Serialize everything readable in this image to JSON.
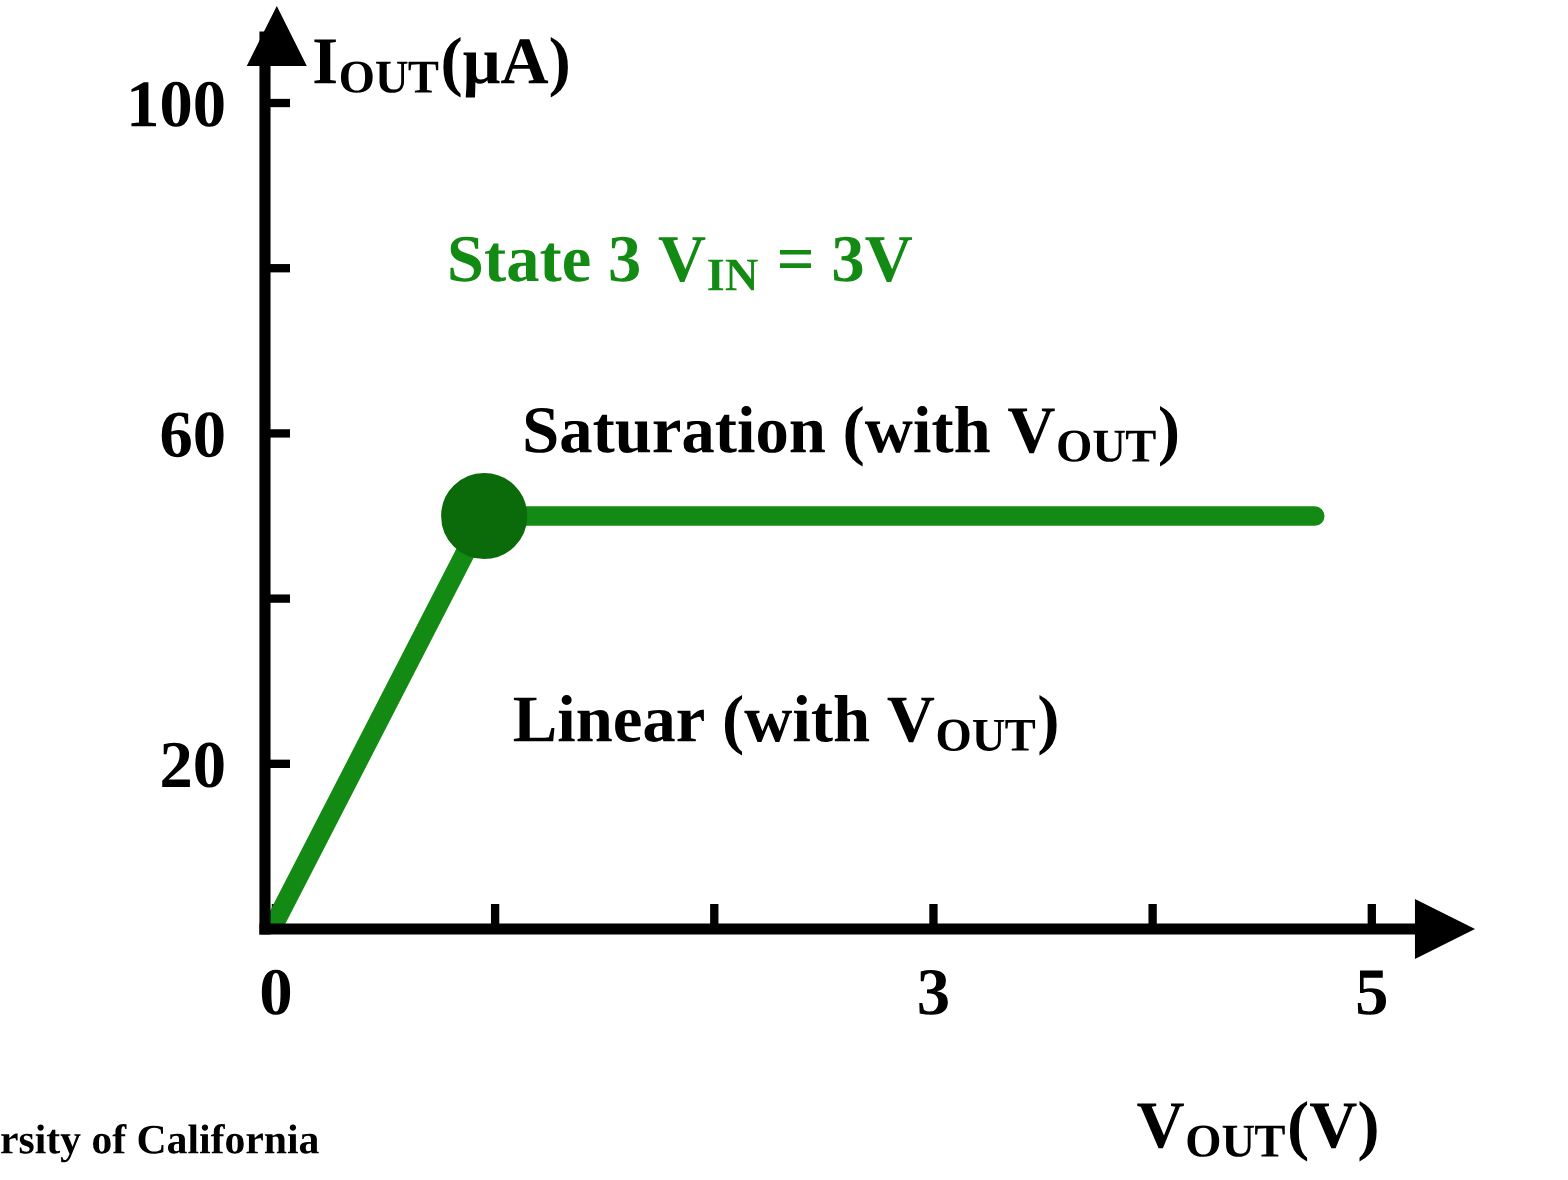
{
  "chart_data": {
    "type": "line",
    "xlabel": "V$_{OUT}$(V)",
    "ylabel": "I$_{OUT}$(μA)",
    "annotations": [
      "State 3 V$_{IN}$ = 3V",
      "Saturation (with V$_{OUT}$)",
      "Linear (with V$_{OUT}$)",
      "rsity of California"
    ],
    "series": [
      {
        "color": "#138a13",
        "x": [
          0,
          0.95,
          4.74
        ],
        "values": [
          1,
          50,
          50
        ],
        "marker": "none"
      },
      {
        "type": "scatter",
        "color": "#0b6b0b",
        "x": [
          0.95
        ],
        "values": [
          50
        ],
        "marker": "circle"
      }
    ],
    "xlim": [
      -0.05,
      5.33
    ],
    "ylim": [
      0,
      108
    ],
    "xticks": [
      0,
      {
        "value": 1,
        "label": null
      },
      {
        "value": 2,
        "label": null
      },
      3,
      {
        "value": 4,
        "label": null
      },
      5
    ],
    "yticks": [
      {
        "value": 20,
        "label": "20"
      },
      {
        "value": 40,
        "label": null
      },
      {
        "value": 60,
        "label": "60"
      },
      {
        "value": 80,
        "label": null
      },
      {
        "value": 100,
        "label": "100"
      }
    ],
    "grid": false,
    "legend": false
  }
}
